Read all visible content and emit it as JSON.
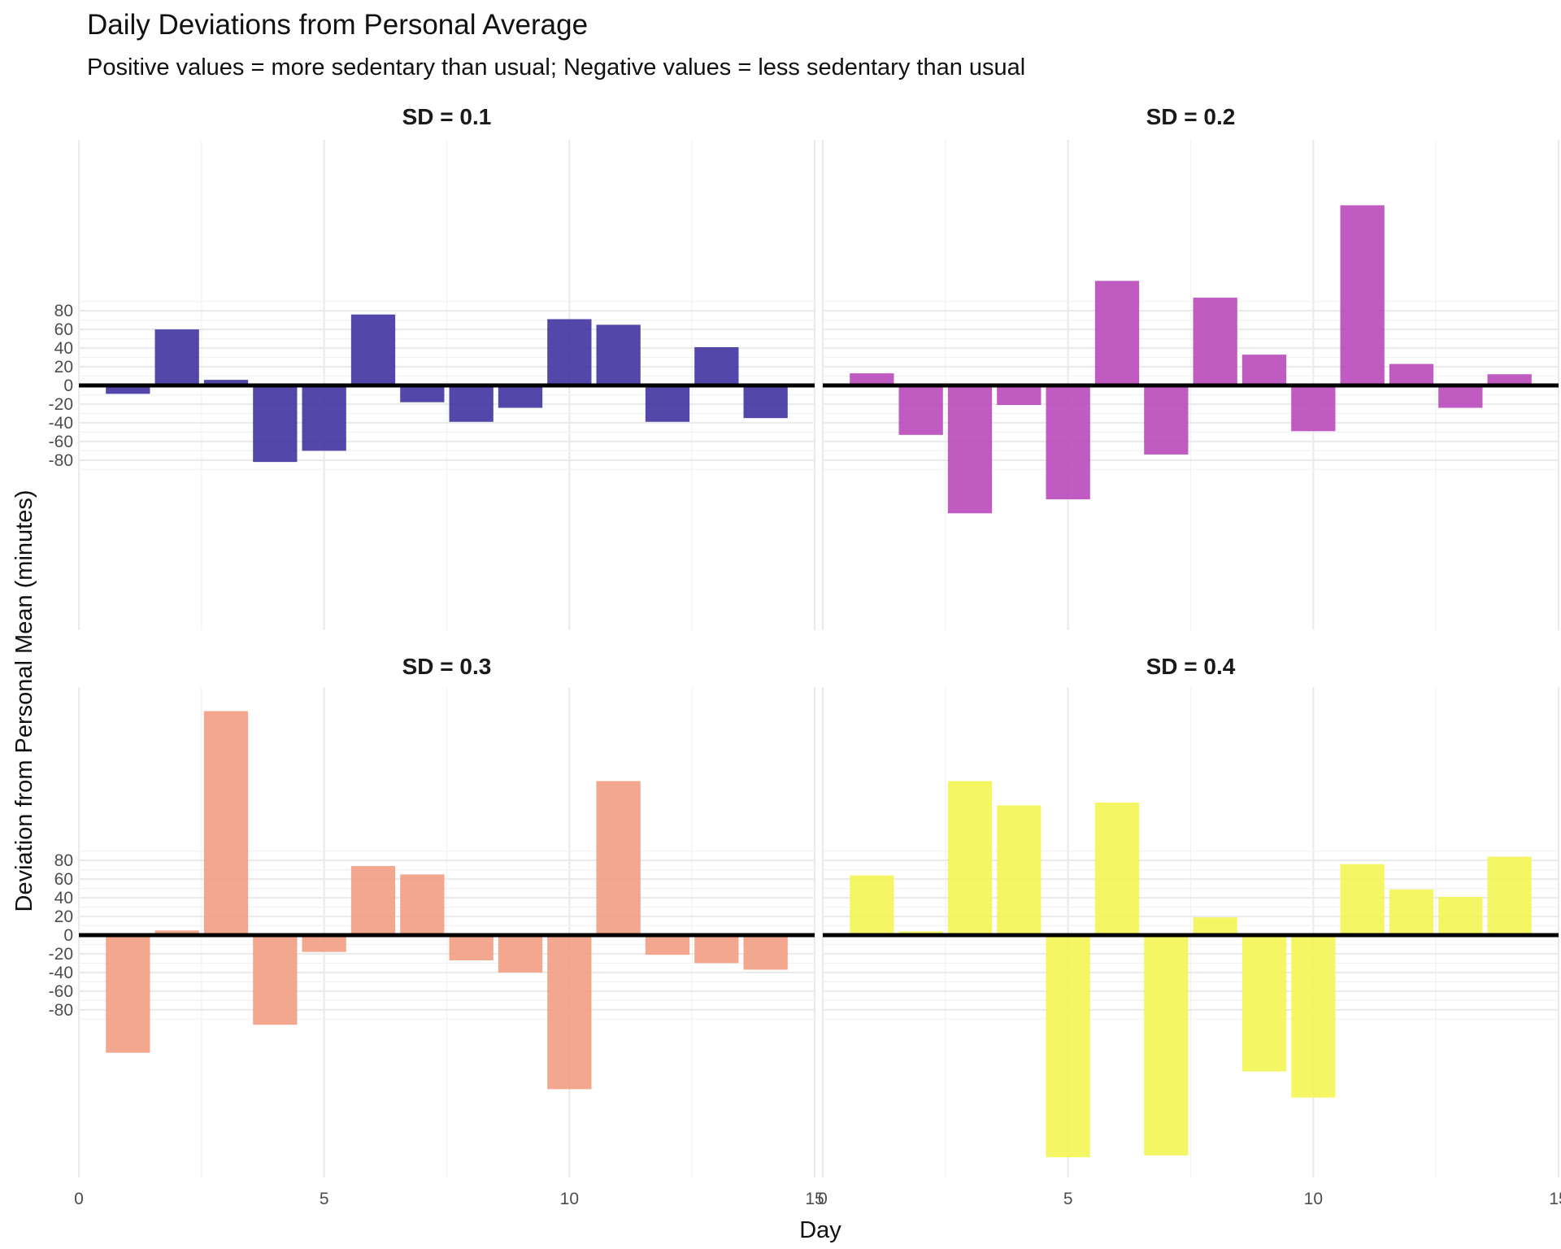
{
  "chart_data": {
    "type": "bar",
    "title": "Daily Deviations from Personal Average",
    "subtitle": "Positive values = more sedentary than usual; Negative values = less sedentary than usual",
    "xlabel": "Day",
    "ylabel": "Deviation from Personal Mean (minutes)",
    "xlim": [
      0,
      15
    ],
    "x_ticks": [
      0,
      5,
      10,
      15
    ],
    "y_ticks": [
      -80,
      -60,
      -40,
      -20,
      0,
      20,
      40,
      60,
      80
    ],
    "ylim": [
      -260,
      195
    ],
    "grid": true,
    "facets": [
      {
        "label": "SD = 0.1",
        "color": "#3B2F9E",
        "x": [
          1,
          2,
          3,
          4,
          5,
          6,
          7,
          8,
          9,
          10,
          11,
          12,
          13,
          14
        ],
        "values": [
          -9,
          60,
          6,
          -82,
          -70,
          76,
          -18,
          -39,
          -24,
          71,
          65,
          -39,
          41,
          -35
        ]
      },
      {
        "label": "SD = 0.2",
        "color": "#B745B8",
        "x": [
          1,
          2,
          3,
          4,
          5,
          6,
          7,
          8,
          9,
          10,
          11,
          12,
          13,
          14
        ],
        "values": [
          13,
          -53,
          -137,
          -21,
          -122,
          112,
          -74,
          94,
          33,
          -49,
          193,
          23,
          -24,
          12
        ]
      },
      {
        "label": "SD = 0.3",
        "color": "#F29B80",
        "x": [
          1,
          2,
          3,
          4,
          5,
          6,
          7,
          8,
          9,
          10,
          11,
          12,
          13,
          14
        ],
        "values": [
          -126,
          5,
          240,
          -96,
          -18,
          74,
          65,
          -27,
          -40,
          -165,
          165,
          -21,
          -30,
          -37
        ]
      },
      {
        "label": "SD = 0.4",
        "color": "#F2F54E",
        "x": [
          1,
          2,
          3,
          4,
          5,
          6,
          7,
          8,
          9,
          10,
          11,
          12,
          13,
          14
        ],
        "values": [
          64,
          4,
          165,
          139,
          -238,
          142,
          -236,
          19,
          -146,
          -174,
          76,
          49,
          41,
          84
        ]
      }
    ]
  }
}
